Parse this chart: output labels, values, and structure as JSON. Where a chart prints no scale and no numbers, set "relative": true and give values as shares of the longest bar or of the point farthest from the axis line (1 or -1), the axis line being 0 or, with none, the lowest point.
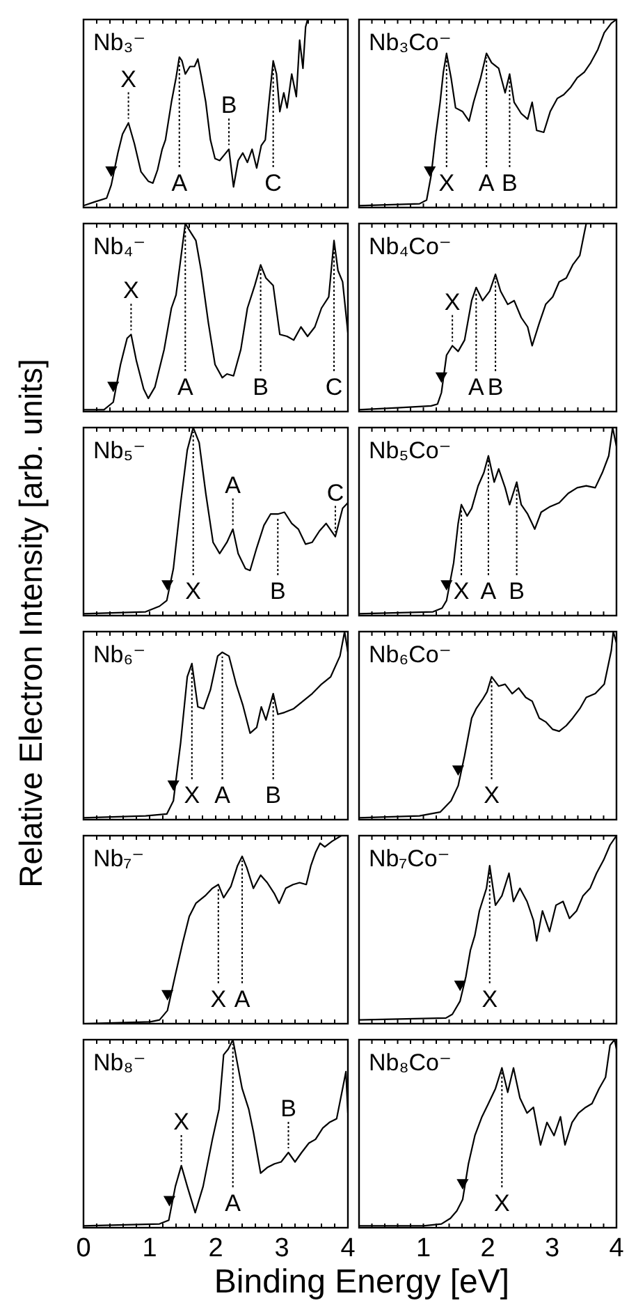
{
  "chart_data": [
    {
      "type": "line",
      "title": "Nb₃⁻",
      "ylabel": "Relative Electron Intensity [arb. units]",
      "relative": true,
      "xlim": [
        0,
        4
      ],
      "xticks": [
        0,
        0.2,
        0.4,
        0.6,
        0.8,
        1,
        1.2,
        1.4,
        1.6,
        1.8,
        2,
        2.2,
        2.4,
        2.6,
        2.8,
        3,
        3.2,
        3.4,
        3.6,
        3.8,
        4
      ],
      "tick_labels": false,
      "series": [
        {
          "color": "#000000",
          "x": [
            0,
            0.17,
            0.35,
            0.42,
            0.52,
            0.59,
            0.68,
            0.77,
            0.87,
            0.98,
            1.05,
            1.12,
            1.19,
            1.24,
            1.33,
            1.4,
            1.45,
            1.49,
            1.54,
            1.61,
            1.68,
            1.73,
            1.78,
            1.85,
            1.92,
            1.99,
            2.06,
            2.13,
            2.2,
            2.27,
            2.34,
            2.41,
            2.48,
            2.55,
            2.62,
            2.69,
            2.75,
            2.8,
            2.87,
            2.92,
            2.97,
            3.03,
            3.08,
            3.15,
            3.22,
            3.27,
            3.32,
            3.36,
            3.39
          ],
          "values": [
            0.01,
            0.03,
            0.05,
            0.12,
            0.29,
            0.39,
            0.45,
            0.34,
            0.19,
            0.14,
            0.13,
            0.2,
            0.31,
            0.36,
            0.56,
            0.69,
            0.8,
            0.78,
            0.71,
            0.75,
            0.75,
            0.79,
            0.7,
            0.56,
            0.36,
            0.26,
            0.25,
            0.28,
            0.31,
            0.11,
            0.25,
            0.29,
            0.24,
            0.31,
            0.21,
            0.33,
            0.36,
            0.54,
            0.78,
            0.71,
            0.51,
            0.61,
            0.53,
            0.71,
            0.59,
            0.89,
            0.74,
            0.96,
            1
          ]
        },
        {
          "type": "scatter",
          "marker": "triangle",
          "color": "#000000",
          "x": [
            0.42
          ],
          "values": [
            0.2
          ]
        }
      ],
      "annotations": [
        {
          "text": "X",
          "x": 0.68,
          "y": 0.45
        },
        {
          "text": "A",
          "x": 1.45,
          "y": 0.8
        },
        {
          "text": "B",
          "x": 2.2,
          "y": 0.31
        },
        {
          "text": "C",
          "x": 2.87,
          "y": 0.78
        }
      ]
    },
    {
      "type": "line",
      "title": "Nb₃Co⁻",
      "relative": true,
      "xlim": [
        0,
        4
      ],
      "xticks": [
        0,
        0.2,
        0.4,
        0.6,
        0.8,
        1,
        1.2,
        1.4,
        1.6,
        1.8,
        2,
        2.2,
        2.4,
        2.6,
        2.8,
        3,
        3.2,
        3.4,
        3.6,
        3.8,
        4
      ],
      "tick_labels": false,
      "series": [
        {
          "color": "#000000",
          "x": [
            0,
            0.94,
            1.05,
            1.12,
            1.19,
            1.26,
            1.31,
            1.36,
            1.43,
            1.5,
            1.61,
            1.71,
            1.78,
            1.89,
            1.98,
            2.06,
            2.17,
            2.27,
            2.34,
            2.41,
            2.52,
            2.62,
            2.69,
            2.76,
            2.87,
            2.97,
            3.08,
            3.18,
            3.29,
            3.39,
            3.5,
            3.6,
            3.71,
            3.81,
            3.92,
            4
          ],
          "values": [
            0.01,
            0.02,
            0.04,
            0.17,
            0.38,
            0.56,
            0.72,
            0.82,
            0.69,
            0.53,
            0.51,
            0.46,
            0.56,
            0.69,
            0.82,
            0.77,
            0.74,
            0.61,
            0.71,
            0.56,
            0.5,
            0.47,
            0.56,
            0.41,
            0.4,
            0.51,
            0.58,
            0.6,
            0.64,
            0.69,
            0.72,
            0.77,
            0.84,
            0.93,
            0.98,
            1
          ]
        },
        {
          "type": "scatter",
          "marker": "triangle",
          "color": "#000000",
          "x": [
            1.1
          ],
          "values": [
            0.2
          ]
        }
      ],
      "annotations": [
        {
          "text": "X",
          "x": 1.36,
          "y": 0.82
        },
        {
          "text": "A",
          "x": 1.98,
          "y": 0.82
        },
        {
          "text": "B",
          "x": 2.34,
          "y": 0.71
        }
      ]
    },
    {
      "type": "line",
      "title": "Nb₄⁻",
      "relative": true,
      "xlim": [
        0,
        4
      ],
      "xticks": [
        0,
        0.2,
        0.4,
        0.6,
        0.8,
        1,
        1.2,
        1.4,
        1.6,
        1.8,
        2,
        2.2,
        2.4,
        2.6,
        2.8,
        3,
        3.2,
        3.4,
        3.6,
        3.8,
        4
      ],
      "tick_labels": false,
      "series": [
        {
          "color": "#000000",
          "x": [
            0,
            0.31,
            0.45,
            0.56,
            0.66,
            0.72,
            0.8,
            0.91,
            0.98,
            1.08,
            1.22,
            1.33,
            1.4,
            1.47,
            1.54,
            1.61,
            1.7,
            1.78,
            1.89,
            1.99,
            2.1,
            2.17,
            2.27,
            2.38,
            2.48,
            2.59,
            2.68,
            2.76,
            2.87,
            2.97,
            3.08,
            3.18,
            3.29,
            3.39,
            3.5,
            3.6,
            3.71,
            3.79,
            3.85,
            3.92,
            4
          ],
          "values": [
            0.01,
            0.01,
            0.05,
            0.25,
            0.39,
            0.41,
            0.27,
            0.12,
            0.07,
            0.13,
            0.33,
            0.55,
            0.62,
            0.81,
            1,
            0.96,
            0.91,
            0.75,
            0.47,
            0.25,
            0.18,
            0.2,
            0.19,
            0.33,
            0.55,
            0.67,
            0.78,
            0.71,
            0.67,
            0.41,
            0.4,
            0.38,
            0.45,
            0.4,
            0.45,
            0.55,
            0.61,
            0.91,
            0.75,
            0.69,
            0.42
          ]
        },
        {
          "type": "scatter",
          "marker": "triangle",
          "color": "#000000",
          "x": [
            0.45
          ],
          "values": [
            0.14
          ]
        }
      ],
      "annotations": [
        {
          "text": "X",
          "x": 0.72,
          "y": 0.41
        },
        {
          "text": "A",
          "x": 1.54,
          "y": 1
        },
        {
          "text": "B",
          "x": 2.68,
          "y": 0.78
        },
        {
          "text": "C",
          "x": 3.79,
          "y": 0.91
        }
      ]
    },
    {
      "type": "line",
      "title": "Nb₄Co⁻",
      "relative": true,
      "xlim": [
        0,
        4
      ],
      "xticks": [
        0,
        0.2,
        0.4,
        0.6,
        0.8,
        1,
        1.2,
        1.4,
        1.6,
        1.8,
        2,
        2.2,
        2.4,
        2.6,
        2.8,
        3,
        3.2,
        3.4,
        3.6,
        3.8,
        4
      ],
      "tick_labels": false,
      "series": [
        {
          "color": "#000000",
          "x": [
            0,
            0.59,
            1.12,
            1.22,
            1.28,
            1.36,
            1.45,
            1.54,
            1.64,
            1.75,
            1.82,
            1.92,
            2.03,
            2.12,
            2.2,
            2.31,
            2.41,
            2.52,
            2.62,
            2.69,
            2.8,
            2.9,
            3.01,
            3.11,
            3.22,
            3.32,
            3.43,
            3.5,
            3.53
          ],
          "values": [
            0.01,
            0.02,
            0.03,
            0.04,
            0.1,
            0.3,
            0.35,
            0.32,
            0.38,
            0.59,
            0.66,
            0.59,
            0.64,
            0.73,
            0.64,
            0.57,
            0.59,
            0.5,
            0.45,
            0.35,
            0.47,
            0.57,
            0.61,
            0.69,
            0.71,
            0.78,
            0.83,
            0.95,
            1
          ]
        },
        {
          "type": "scatter",
          "marker": "triangle",
          "color": "#000000",
          "x": [
            1.28
          ],
          "values": [
            0.19
          ]
        }
      ],
      "annotations": [
        {
          "text": "X",
          "x": 1.45,
          "y": 0.35
        },
        {
          "text": "A",
          "x": 1.82,
          "y": 0.66
        },
        {
          "text": "B",
          "x": 2.12,
          "y": 0.73
        }
      ]
    },
    {
      "type": "line",
      "title": "Nb₅⁻",
      "relative": true,
      "xlim": [
        0,
        4
      ],
      "xticks": [
        0,
        0.2,
        0.4,
        0.6,
        0.8,
        1,
        1.2,
        1.4,
        1.6,
        1.8,
        2,
        2.2,
        2.4,
        2.6,
        2.8,
        3,
        3.2,
        3.4,
        3.6,
        3.8,
        4
      ],
      "tick_labels": false,
      "series": [
        {
          "color": "#000000",
          "x": [
            0,
            0.94,
            1.15,
            1.26,
            1.36,
            1.47,
            1.57,
            1.66,
            1.75,
            1.85,
            1.96,
            2.06,
            2.17,
            2.26,
            2.34,
            2.45,
            2.52,
            2.62,
            2.73,
            2.83,
            2.94,
            3.04,
            3.15,
            3.25,
            3.36,
            3.46,
            3.57,
            3.67,
            3.81,
            3.92,
            4
          ],
          "values": [
            0.01,
            0.02,
            0.05,
            0.08,
            0.25,
            0.6,
            0.88,
            1,
            0.92,
            0.65,
            0.39,
            0.33,
            0.39,
            0.46,
            0.33,
            0.25,
            0.24,
            0.36,
            0.48,
            0.54,
            0.54,
            0.55,
            0.49,
            0.46,
            0.38,
            0.39,
            0.45,
            0.49,
            0.42,
            0.57,
            0.6
          ]
        },
        {
          "type": "scatter",
          "marker": "triangle",
          "color": "#000000",
          "x": [
            1.27
          ],
          "values": [
            0.17
          ]
        }
      ],
      "annotations": [
        {
          "text": "X",
          "x": 1.66,
          "y": 1
        },
        {
          "text": "A",
          "x": 2.26,
          "y": 0.46
        },
        {
          "text": "B",
          "x": 2.94,
          "y": 0.54
        },
        {
          "text": "C",
          "x": 3.81,
          "y": 0.42
        }
      ]
    },
    {
      "type": "line",
      "title": "Nb₅Co⁻",
      "relative": true,
      "xlim": [
        0,
        4
      ],
      "xticks": [
        0,
        0.2,
        0.4,
        0.6,
        0.8,
        1,
        1.2,
        1.4,
        1.6,
        1.8,
        2,
        2.2,
        2.4,
        2.6,
        2.8,
        3,
        3.2,
        3.4,
        3.6,
        3.8,
        4
      ],
      "tick_labels": false,
      "series": [
        {
          "color": "#000000",
          "x": [
            0,
            1.15,
            1.29,
            1.36,
            1.47,
            1.54,
            1.59,
            1.68,
            1.75,
            1.85,
            1.94,
            2.01,
            2.1,
            2.17,
            2.27,
            2.34,
            2.45,
            2.52,
            2.62,
            2.73,
            2.83,
            2.97,
            3.11,
            3.25,
            3.39,
            3.53,
            3.67,
            3.78,
            3.88,
            3.94,
            4
          ],
          "values": [
            0.01,
            0.02,
            0.04,
            0.08,
            0.28,
            0.49,
            0.59,
            0.53,
            0.57,
            0.69,
            0.76,
            0.85,
            0.71,
            0.78,
            0.68,
            0.59,
            0.71,
            0.59,
            0.54,
            0.46,
            0.55,
            0.58,
            0.6,
            0.65,
            0.68,
            0.69,
            0.68,
            0.76,
            0.85,
            1,
            0.9
          ]
        },
        {
          "type": "scatter",
          "marker": "triangle",
          "color": "#000000",
          "x": [
            1.36
          ],
          "values": [
            0.17
          ]
        }
      ],
      "annotations": [
        {
          "text": "X",
          "x": 1.59,
          "y": 0.59
        },
        {
          "text": "A",
          "x": 2.01,
          "y": 0.85
        },
        {
          "text": "B",
          "x": 2.45,
          "y": 0.71
        }
      ]
    },
    {
      "type": "line",
      "title": "Nb₆⁻",
      "relative": true,
      "xlim": [
        0,
        4
      ],
      "xticks": [
        0,
        0.2,
        0.4,
        0.6,
        0.8,
        1,
        1.2,
        1.4,
        1.6,
        1.8,
        2,
        2.2,
        2.4,
        2.6,
        2.8,
        3,
        3.2,
        3.4,
        3.6,
        3.8,
        4
      ],
      "tick_labels": false,
      "series": [
        {
          "color": "#000000",
          "x": [
            0,
            0.94,
            1.26,
            1.36,
            1.47,
            1.57,
            1.64,
            1.73,
            1.82,
            1.92,
            2.03,
            2.1,
            2.2,
            2.31,
            2.41,
            2.52,
            2.62,
            2.69,
            2.76,
            2.87,
            2.94,
            3.04,
            3.18,
            3.32,
            3.46,
            3.6,
            3.74,
            3.88,
            3.95,
            4
          ],
          "values": [
            0.01,
            0.02,
            0.03,
            0.1,
            0.41,
            0.76,
            0.83,
            0.6,
            0.59,
            0.69,
            0.87,
            0.89,
            0.87,
            0.72,
            0.61,
            0.46,
            0.49,
            0.6,
            0.53,
            0.67,
            0.56,
            0.57,
            0.59,
            0.63,
            0.67,
            0.72,
            0.76,
            0.87,
            1,
            0.89
          ]
        },
        {
          "type": "scatter",
          "marker": "triangle",
          "color": "#000000",
          "x": [
            1.36
          ],
          "values": [
            0.19
          ]
        }
      ],
      "annotations": [
        {
          "text": "X",
          "x": 1.64,
          "y": 0.83
        },
        {
          "text": "A",
          "x": 2.1,
          "y": 0.89
        },
        {
          "text": "B",
          "x": 2.87,
          "y": 0.67
        }
      ]
    },
    {
      "type": "line",
      "title": "Nb₆Co⁻",
      "relative": true,
      "xlim": [
        0,
        4
      ],
      "xticks": [
        0,
        0.2,
        0.4,
        0.6,
        0.8,
        1,
        1.2,
        1.4,
        1.6,
        1.8,
        2,
        2.2,
        2.4,
        2.6,
        2.8,
        3,
        3.2,
        3.4,
        3.6,
        3.8,
        4
      ],
      "tick_labels": false,
      "series": [
        {
          "color": "#000000",
          "x": [
            0,
            0.94,
            1.26,
            1.43,
            1.54,
            1.64,
            1.75,
            1.82,
            1.92,
            1.99,
            2.06,
            2.17,
            2.27,
            2.38,
            2.48,
            2.59,
            2.69,
            2.8,
            2.9,
            3.01,
            3.11,
            3.22,
            3.32,
            3.43,
            3.53,
            3.67,
            3.81,
            3.92,
            3.95,
            4
          ],
          "values": [
            0.01,
            0.02,
            0.04,
            0.1,
            0.18,
            0.34,
            0.54,
            0.59,
            0.64,
            0.68,
            0.76,
            0.71,
            0.72,
            0.67,
            0.7,
            0.65,
            0.63,
            0.54,
            0.52,
            0.48,
            0.47,
            0.5,
            0.54,
            0.59,
            0.65,
            0.67,
            0.72,
            0.9,
            1,
            0.94
          ]
        },
        {
          "type": "scatter",
          "marker": "triangle",
          "color": "#000000",
          "x": [
            1.54
          ],
          "values": [
            0.27
          ]
        }
      ],
      "annotations": [
        {
          "text": "X",
          "x": 2.06,
          "y": 0.76
        }
      ]
    },
    {
      "type": "line",
      "title": "Nb₇⁻",
      "relative": true,
      "xlim": [
        0,
        4
      ],
      "xticks": [
        0,
        0.2,
        0.4,
        0.6,
        0.8,
        1,
        1.2,
        1.4,
        1.6,
        1.8,
        2,
        2.2,
        2.4,
        2.6,
        2.8,
        3,
        3.2,
        3.4,
        3.6,
        3.8,
        4
      ],
      "tick_labels": false,
      "series": [
        {
          "color": "#000000",
          "x": [
            0,
            1.01,
            1.15,
            1.27,
            1.39,
            1.5,
            1.6,
            1.7,
            1.84,
            1.95,
            2.04,
            2.12,
            2.23,
            2.33,
            2.4,
            2.47,
            2.57,
            2.68,
            2.78,
            2.89,
            2.96,
            3.06,
            3.17,
            3.27,
            3.37,
            3.44,
            3.51,
            3.58,
            3.65,
            3.76,
            3.9
          ],
          "values": [
            0,
            0.01,
            0.02,
            0.07,
            0.26,
            0.43,
            0.57,
            0.64,
            0.68,
            0.72,
            0.74,
            0.67,
            0.73,
            0.84,
            0.89,
            0.83,
            0.72,
            0.79,
            0.75,
            0.69,
            0.64,
            0.72,
            0.74,
            0.75,
            0.74,
            0.84,
            0.91,
            0.96,
            0.94,
            0.97,
            1
          ]
        },
        {
          "type": "scatter",
          "marker": "triangle",
          "color": "#000000",
          "x": [
            1.27
          ],
          "values": [
            0.16
          ]
        }
      ],
      "annotations": [
        {
          "text": "X",
          "x": 2.04,
          "y": 0.74
        },
        {
          "text": "A",
          "x": 2.4,
          "y": 0.89
        }
      ]
    },
    {
      "type": "line",
      "title": "Nb₇Co⁻",
      "relative": true,
      "xlim": [
        0,
        4
      ],
      "xticks": [
        0,
        0.2,
        0.4,
        0.6,
        0.8,
        1,
        1.2,
        1.4,
        1.6,
        1.8,
        2,
        2.2,
        2.4,
        2.6,
        2.8,
        3,
        3.2,
        3.4,
        3.6,
        3.8,
        4
      ],
      "tick_labels": false,
      "series": [
        {
          "color": "#000000",
          "x": [
            0,
            1.35,
            1.45,
            1.57,
            1.66,
            1.73,
            1.8,
            1.87,
            1.98,
            2.03,
            2.12,
            2.22,
            2.33,
            2.4,
            2.5,
            2.61,
            2.71,
            2.76,
            2.85,
            2.96,
            3.06,
            3.17,
            3.27,
            3.38,
            3.48,
            3.59,
            3.69,
            3.8,
            3.9,
            4
          ],
          "values": [
            0.02,
            0.03,
            0.05,
            0.12,
            0.25,
            0.39,
            0.47,
            0.6,
            0.72,
            0.84,
            0.63,
            0.68,
            0.8,
            0.65,
            0.72,
            0.65,
            0.55,
            0.44,
            0.6,
            0.49,
            0.63,
            0.65,
            0.56,
            0.6,
            0.68,
            0.72,
            0.8,
            0.87,
            0.95,
            1
          ]
        },
        {
          "type": "scatter",
          "marker": "triangle",
          "color": "#000000",
          "x": [
            1.57
          ],
          "values": [
            0.21
          ]
        }
      ],
      "annotations": [
        {
          "text": "X",
          "x": 2.03,
          "y": 0.84
        }
      ]
    },
    {
      "type": "line",
      "title": "Nb₈⁻",
      "xlabel": "Binding Energy [eV]",
      "relative": true,
      "xlim": [
        0,
        4
      ],
      "xticks": [
        0,
        {
          "value": 0.2,
          "label": null
        },
        {
          "value": 0.4,
          "label": null
        },
        {
          "value": 0.6,
          "label": null
        },
        {
          "value": 0.8,
          "label": null
        },
        1,
        {
          "value": 1.2,
          "label": null
        },
        {
          "value": 1.4,
          "label": null
        },
        {
          "value": 1.6,
          "label": null
        },
        {
          "value": 1.8,
          "label": null
        },
        2,
        {
          "value": 2.2,
          "label": null
        },
        {
          "value": 2.4,
          "label": null
        },
        {
          "value": 2.6,
          "label": null
        },
        {
          "value": 2.8,
          "label": null
        },
        3,
        {
          "value": 3.2,
          "label": null
        },
        {
          "value": 3.4,
          "label": null
        },
        {
          "value": 3.6,
          "label": null
        },
        {
          "value": 3.8,
          "label": null
        },
        4
      ],
      "tick_labels": "x",
      "series": [
        {
          "color": "#000000",
          "x": [
            0,
            1.15,
            1.29,
            1.39,
            1.48,
            1.57,
            1.69,
            1.81,
            1.95,
            2.05,
            2.12,
            2.19,
            2.26,
            2.33,
            2.4,
            2.5,
            2.57,
            2.68,
            2.78,
            2.89,
            2.99,
            3.1,
            3.2,
            3.3,
            3.41,
            3.51,
            3.62,
            3.72,
            3.83,
            3.92,
            3.97,
            4
          ],
          "values": [
            0.01,
            0.02,
            0.04,
            0.22,
            0.33,
            0.22,
            0.08,
            0.22,
            0.47,
            0.63,
            0.92,
            0.95,
            1,
            0.87,
            0.74,
            0.63,
            0.51,
            0.29,
            0.32,
            0.34,
            0.35,
            0.4,
            0.35,
            0.4,
            0.45,
            0.47,
            0.53,
            0.56,
            0.58,
            0.74,
            0.83,
            0.61
          ]
        },
        {
          "type": "scatter",
          "marker": "triangle",
          "color": "#000000",
          "x": [
            1.3
          ],
          "values": [
            0.15
          ]
        }
      ],
      "annotations": [
        {
          "text": "X",
          "x": 1.48,
          "y": 0.33
        },
        {
          "text": "A",
          "x": 2.26,
          "y": 1
        },
        {
          "text": "B",
          "x": 3.1,
          "y": 0.4
        }
      ]
    },
    {
      "type": "line",
      "title": "Nb₈Co⁻",
      "relative": true,
      "xlim": [
        0,
        4
      ],
      "xticks": [
        {
          "value": 0,
          "label": null
        },
        {
          "value": 0.2,
          "label": null
        },
        {
          "value": 0.4,
          "label": null
        },
        {
          "value": 0.6,
          "label": null
        },
        {
          "value": 0.8,
          "label": null
        },
        1,
        {
          "value": 1.2,
          "label": null
        },
        {
          "value": 1.4,
          "label": null
        },
        {
          "value": 1.6,
          "label": null
        },
        {
          "value": 1.8,
          "label": null
        },
        2,
        {
          "value": 2.2,
          "label": null
        },
        {
          "value": 2.4,
          "label": null
        },
        {
          "value": 2.6,
          "label": null
        },
        {
          "value": 2.8,
          "label": null
        },
        3,
        {
          "value": 3.2,
          "label": null
        },
        {
          "value": 3.4,
          "label": null
        },
        {
          "value": 3.6,
          "label": null
        },
        {
          "value": 3.8,
          "label": null
        },
        4
      ],
      "tick_labels": "x",
      "series": [
        {
          "color": "#000000",
          "x": [
            0,
            1,
            1.28,
            1.42,
            1.52,
            1.61,
            1.7,
            1.8,
            1.91,
            2.01,
            2.12,
            2.22,
            2.31,
            2.4,
            2.5,
            2.61,
            2.71,
            2.82,
            2.92,
            3.03,
            3.13,
            3.2,
            3.31,
            3.41,
            3.52,
            3.62,
            3.73,
            3.83,
            3.9,
            3.97,
            4
          ],
          "values": [
            0.01,
            0.01,
            0.02,
            0.05,
            0.09,
            0.15,
            0.34,
            0.49,
            0.59,
            0.66,
            0.74,
            0.85,
            0.72,
            0.85,
            0.69,
            0.61,
            0.64,
            0.44,
            0.56,
            0.49,
            0.59,
            0.44,
            0.56,
            0.61,
            0.64,
            0.66,
            0.74,
            0.8,
            0.97,
            1,
            0.95
          ]
        },
        {
          "type": "scatter",
          "marker": "triangle",
          "color": "#000000",
          "x": [
            1.61
          ],
          "values": [
            0.24
          ]
        }
      ],
      "annotations": [
        {
          "text": "X",
          "x": 2.22,
          "y": 0.85
        }
      ]
    }
  ]
}
